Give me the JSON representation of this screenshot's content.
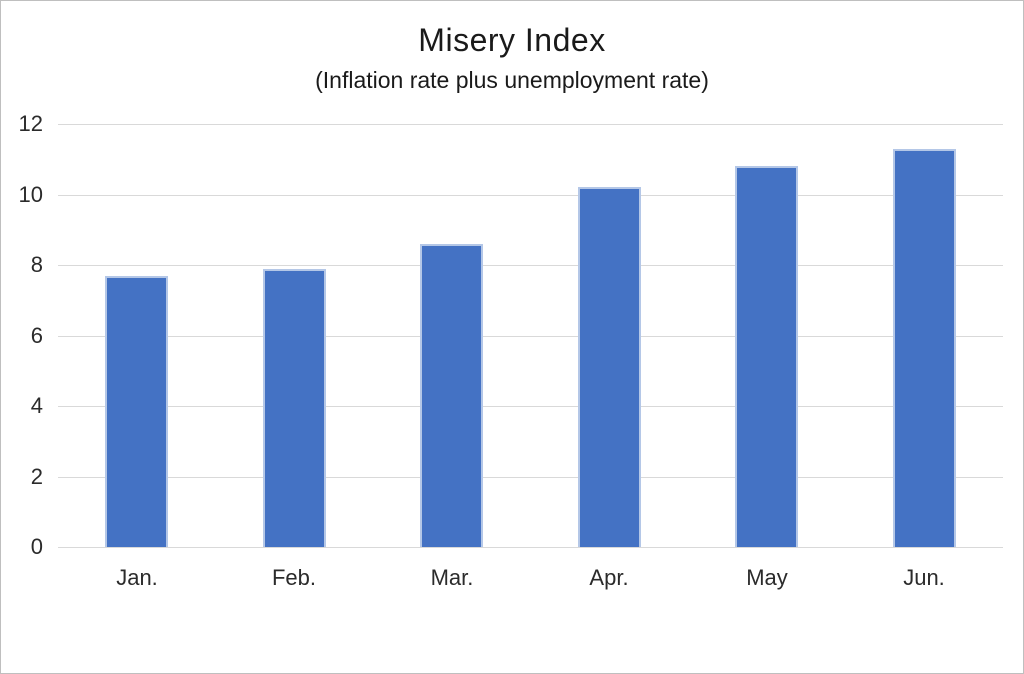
{
  "window": {
    "background": "#ffffff",
    "frame_border_color": "#bfbfbf"
  },
  "chart_data": {
    "type": "bar",
    "title": "Misery Index",
    "subtitle": "(Inflation rate plus unemployment rate)",
    "categories": [
      "Jan.",
      "Feb.",
      "Mar.",
      "Apr.",
      "May",
      "Jun."
    ],
    "values": [
      7.7,
      7.9,
      8.6,
      10.2,
      10.8,
      11.3
    ],
    "xlabel": "",
    "ylabel": "",
    "ylim": [
      0,
      12
    ],
    "yticks": [
      0,
      2,
      4,
      6,
      8,
      10,
      12
    ],
    "grid": true,
    "legend_position": "none",
    "bar_fill_color": "#4472C4",
    "bar_border_color": "#B4C7E7",
    "gridline_color": "#D9D9D9",
    "axis_line_color": "#D9D9D9",
    "title_color": "#1a1a1a",
    "tick_label_color": "#2b2b2b"
  }
}
